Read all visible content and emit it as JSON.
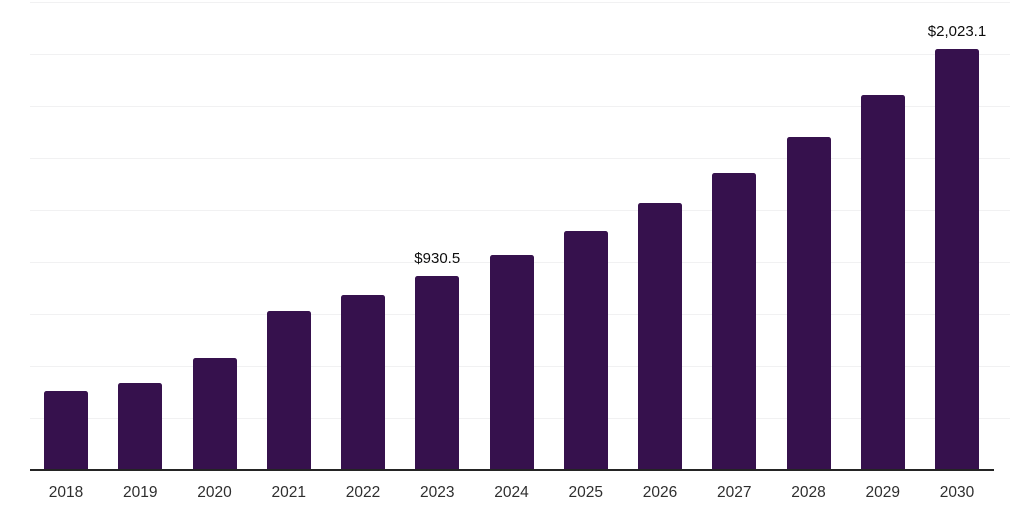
{
  "colors": {
    "background": "#ffffff",
    "bar": "#36114D",
    "gridline": "#f1f1f2",
    "axis_line": "#242424",
    "value_label_text": "#0d0d0d",
    "tick_label_text": "#2e2e2e"
  },
  "chart_data": {
    "type": "bar",
    "title": "",
    "xlabel": "",
    "ylabel": "",
    "categories": [
      "2018",
      "2019",
      "2020",
      "2021",
      "2022",
      "2023",
      "2024",
      "2025",
      "2026",
      "2027",
      "2028",
      "2029",
      "2030"
    ],
    "values": [
      378,
      419,
      537,
      763,
      843,
      930.5,
      1034,
      1149,
      1283,
      1426,
      1601,
      1802,
      2023.1
    ],
    "value_labels": {
      "2023": "$930.5",
      "2030": "$2,023.1"
    },
    "ylim": [
      0,
      2250
    ],
    "grid_step": 250,
    "gridlines": "horizontal-only",
    "y_tick_labels_visible": false,
    "legend": "none"
  }
}
